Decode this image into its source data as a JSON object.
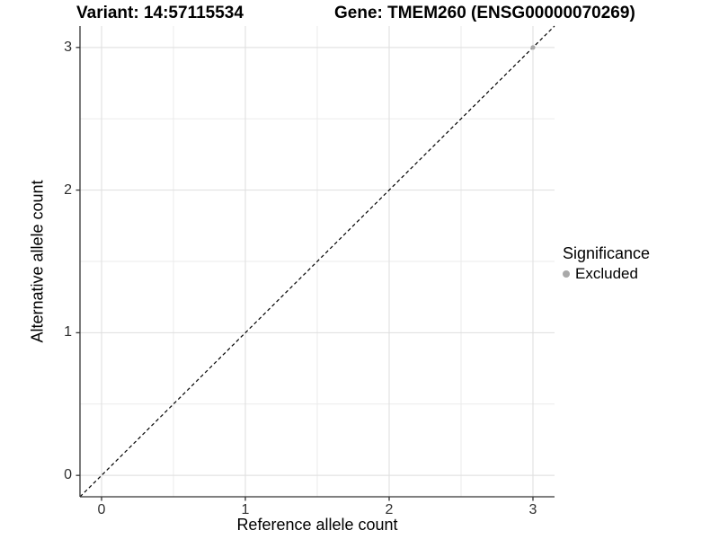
{
  "header": {
    "title_left": "Variant: 14:57115534",
    "title_right": "Gene: TMEM260 (ENSG00000070269)"
  },
  "chart_data": {
    "type": "scatter",
    "title": "Variant: 14:57115534 — Gene: TMEM260 (ENSG00000070269)",
    "xlabel": "Reference allele count",
    "ylabel": "Alternative allele count",
    "xlim": [
      -0.15,
      3.15
    ],
    "ylim": [
      -0.15,
      3.15
    ],
    "x_ticks": [
      0,
      1,
      2,
      3
    ],
    "y_ticks": [
      0,
      1,
      2,
      3
    ],
    "minor_ticks": [
      0.5,
      1.5,
      2.5
    ],
    "grid": true,
    "grid_major_color": "#dedede",
    "grid_minor_color": "#ebebeb",
    "axis_line_color": "#333333",
    "series": [
      {
        "name": "Excluded",
        "color": "#a9a9a9",
        "points": [
          {
            "x": 3,
            "y": 3
          }
        ]
      }
    ],
    "reference_line": {
      "type": "identity",
      "style": "dashed",
      "color": "#000000",
      "from": [
        -0.15,
        -0.15
      ],
      "to": [
        3.15,
        3.15
      ]
    },
    "legend_position": "right"
  },
  "legend": {
    "title": "Significance",
    "items": [
      {
        "label": "Excluded",
        "color": "#a9a9a9"
      }
    ]
  }
}
